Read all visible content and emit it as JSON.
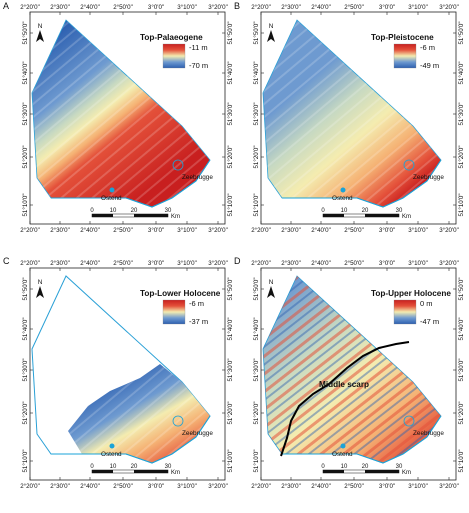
{
  "figure": {
    "panels": [
      {
        "letter": "A",
        "title": "Top-Palaeogene",
        "legend_max": "-11 m",
        "legend_min": "-70 m",
        "annotation": "",
        "lower_holocene_extent": false
      },
      {
        "letter": "B",
        "title": "Top-Pleistocene",
        "legend_max": "-6 m",
        "legend_min": "-49 m",
        "annotation": "",
        "lower_holocene_extent": false
      },
      {
        "letter": "C",
        "title": "Top-Lower Holocene",
        "legend_max": "-6 m",
        "legend_min": "-37 m",
        "annotation": "",
        "lower_holocene_extent": true
      },
      {
        "letter": "D",
        "title": "Top-Upper Holocene",
        "legend_max": "0 m",
        "legend_min": "-47 m",
        "annotation": "Middle scarp",
        "lower_holocene_extent": false
      }
    ],
    "north_label": "N",
    "places": {
      "ostend": "Ostend",
      "zeebrugge": "Zeebrugge"
    },
    "scale_labels": [
      "0",
      "10",
      "20",
      "30"
    ],
    "scale_unit": "Km",
    "lon_labels": [
      "2°20'0\"",
      "2°30'0\"",
      "2°40'0\"",
      "2°50'0\"",
      "3°0'0\"",
      "3°10'0\"",
      "3°20'0\""
    ],
    "lat_labels": [
      "51°50'0\"",
      "51°40'0\"",
      "51°30'0\"",
      "51°20'0\"",
      "51°10'0\""
    ],
    "colors": {
      "ramp": [
        "#2c5fb0",
        "#6e9ad0",
        "#c7d9c2",
        "#f4ecb0",
        "#f5b274",
        "#e4513a",
        "#c81f1f"
      ],
      "coastline": "#1aa3d8",
      "outline": "#2aa0d6",
      "scarp": "#000000"
    }
  }
}
